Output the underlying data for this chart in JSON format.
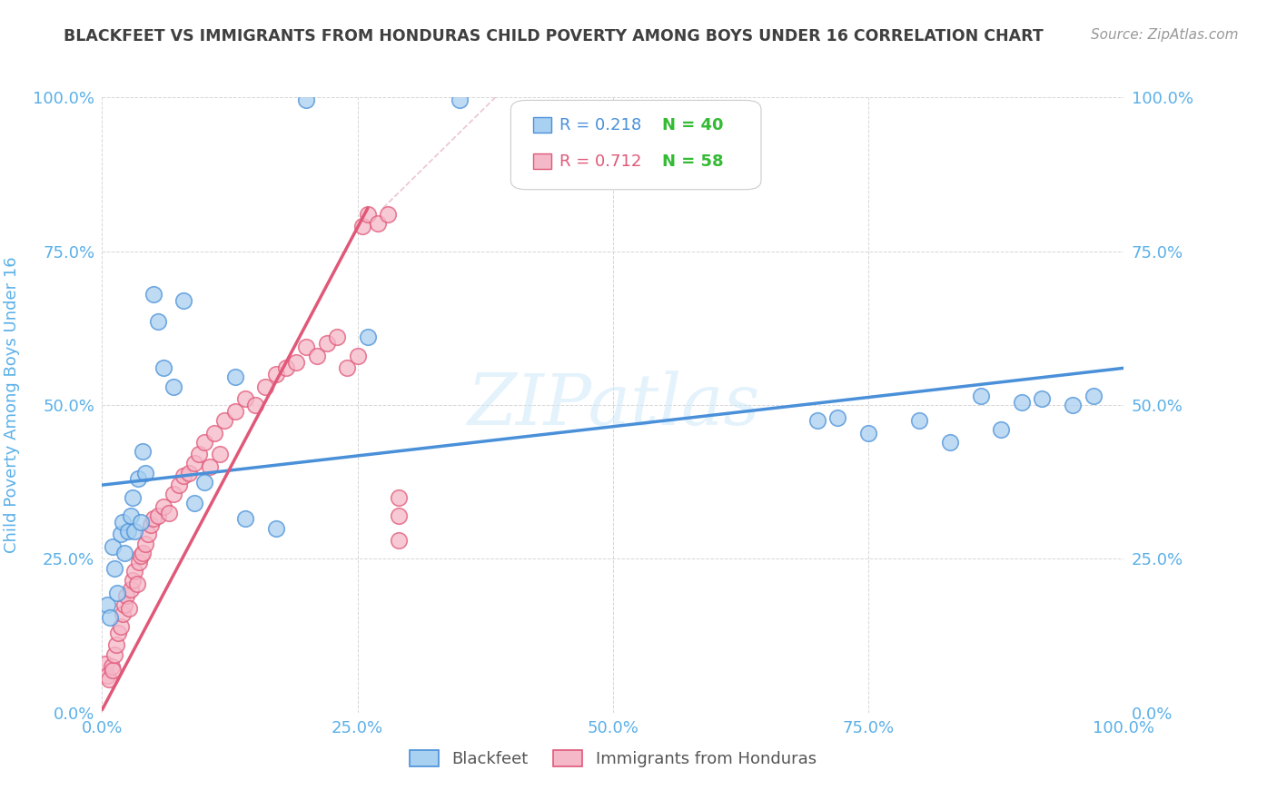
{
  "title": "BLACKFEET VS IMMIGRANTS FROM HONDURAS CHILD POVERTY AMONG BOYS UNDER 16 CORRELATION CHART",
  "source": "Source: ZipAtlas.com",
  "ylabel": "Child Poverty Among Boys Under 16",
  "watermark": "ZIPatlas",
  "blue_R": 0.218,
  "blue_N": 40,
  "pink_R": 0.712,
  "pink_N": 58,
  "blue_color": "#a8d0f0",
  "pink_color": "#f5b8c8",
  "blue_line_color": "#4a90d9",
  "pink_line_color": "#e05878",
  "axis_tick_color": "#5bb0e8",
  "title_color": "#404040",
  "source_color": "#999999",
  "xlim": [
    0.0,
    1.0
  ],
  "ylim": [
    0.0,
    1.0
  ],
  "blue_scatter_x": [
    0.005,
    0.008,
    0.01,
    0.012,
    0.015,
    0.018,
    0.02,
    0.022,
    0.025,
    0.028,
    0.03,
    0.032,
    0.035,
    0.038,
    0.04,
    0.042,
    0.05,
    0.055,
    0.06,
    0.07,
    0.08,
    0.09,
    0.1,
    0.13,
    0.14,
    0.17,
    0.2,
    0.26,
    0.35,
    0.7,
    0.72,
    0.75,
    0.8,
    0.83,
    0.86,
    0.88,
    0.9,
    0.92,
    0.95,
    0.97
  ],
  "blue_scatter_y": [
    0.175,
    0.155,
    0.27,
    0.235,
    0.195,
    0.29,
    0.31,
    0.26,
    0.295,
    0.32,
    0.35,
    0.295,
    0.38,
    0.31,
    0.425,
    0.39,
    0.68,
    0.635,
    0.56,
    0.53,
    0.67,
    0.34,
    0.375,
    0.545,
    0.315,
    0.3,
    0.995,
    0.61,
    0.995,
    0.475,
    0.48,
    0.455,
    0.475,
    0.44,
    0.515,
    0.46,
    0.505,
    0.51,
    0.5,
    0.515
  ],
  "pink_scatter_x": [
    0.003,
    0.005,
    0.007,
    0.009,
    0.01,
    0.012,
    0.014,
    0.016,
    0.018,
    0.02,
    0.022,
    0.024,
    0.026,
    0.028,
    0.03,
    0.032,
    0.034,
    0.036,
    0.038,
    0.04,
    0.042,
    0.045,
    0.048,
    0.05,
    0.055,
    0.06,
    0.065,
    0.07,
    0.075,
    0.08,
    0.085,
    0.09,
    0.095,
    0.1,
    0.105,
    0.11,
    0.115,
    0.12,
    0.13,
    0.14,
    0.15,
    0.16,
    0.17,
    0.18,
    0.19,
    0.2,
    0.21,
    0.22,
    0.23,
    0.24,
    0.25,
    0.255,
    0.26,
    0.27,
    0.28,
    0.29,
    0.29,
    0.29
  ],
  "pink_scatter_y": [
    0.08,
    0.06,
    0.055,
    0.075,
    0.07,
    0.095,
    0.11,
    0.13,
    0.14,
    0.16,
    0.175,
    0.19,
    0.17,
    0.2,
    0.215,
    0.23,
    0.21,
    0.245,
    0.255,
    0.26,
    0.275,
    0.29,
    0.305,
    0.315,
    0.32,
    0.335,
    0.325,
    0.355,
    0.37,
    0.385,
    0.39,
    0.405,
    0.42,
    0.44,
    0.4,
    0.455,
    0.42,
    0.475,
    0.49,
    0.51,
    0.5,
    0.53,
    0.55,
    0.56,
    0.57,
    0.595,
    0.58,
    0.6,
    0.61,
    0.56,
    0.58,
    0.79,
    0.81,
    0.795,
    0.81,
    0.32,
    0.35,
    0.28
  ],
  "blue_line_x": [
    0.0,
    1.0
  ],
  "blue_line_y": [
    0.37,
    0.56
  ],
  "pink_line_x": [
    0.0,
    0.26
  ],
  "pink_line_y": [
    0.005,
    0.82
  ],
  "diag_line_x": [
    0.275,
    0.385
  ],
  "diag_line_y": [
    0.82,
    1.0
  ]
}
